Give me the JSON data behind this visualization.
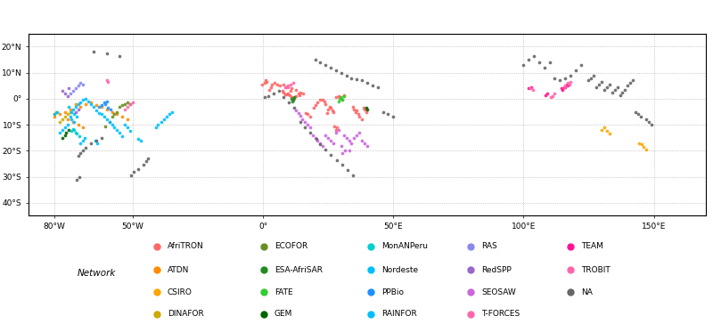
{
  "networks_colors": {
    "AfriTRON": "#FF6666",
    "ATDN": "#FF8C00",
    "CSIRO": "#FFA500",
    "DINAFOR": "#CCAA00",
    "ECOFOR": "#6B8E23",
    "ESA-AfriSAR": "#228B22",
    "FATE": "#32CD32",
    "GEM": "#006400",
    "MonANPeru": "#00CED1",
    "Nordeste": "#00BFFF",
    "PPBio": "#1E90FF",
    "RAINFOR": "#00BFFF",
    "RAS": "#8888EE",
    "RedSPP": "#9966CC",
    "SEOSAW": "#CC66DD",
    "T-FORCES": "#FF66AA",
    "TEAM": "#FF1493",
    "TROBIT": "#FF66AA",
    "NA": "#666666"
  },
  "legend_rows": [
    [
      [
        "AfriTRON",
        "#FF6666"
      ],
      [
        "ECOFOR",
        "#6B8E23"
      ],
      [
        "MonANPeru",
        "#00CED1"
      ],
      [
        "RAS",
        "#8888EE"
      ],
      [
        "TEAM",
        "#FF1493"
      ]
    ],
    [
      [
        "ATDN",
        "#FF8C00"
      ],
      [
        "ESA-AfriSAR",
        "#228B22"
      ],
      [
        "Nordeste",
        "#00BFFF"
      ],
      [
        "RedSPP",
        "#9966CC"
      ],
      [
        "TROBIT",
        "#FF66AA"
      ]
    ],
    [
      [
        "CSIRO",
        "#FFA500"
      ],
      [
        "FATE",
        "#32CD32"
      ],
      [
        "PPBio",
        "#1E90FF"
      ],
      [
        "SEOSAW",
        "#CC66DD"
      ],
      [
        "NA",
        "#666666"
      ]
    ],
    [
      [
        "DINAFOR",
        "#CCAA00"
      ],
      [
        "GEM",
        "#006400"
      ],
      [
        "RAINFOR",
        "#00BFFF"
      ],
      [
        "T-FORCES",
        "#FF66AA"
      ],
      null
    ]
  ],
  "map_lon_min": -90,
  "map_lon_max": 170,
  "map_lat_min": -45,
  "map_lat_max": 25,
  "grid_lons": [
    -80,
    -50,
    0,
    50,
    100,
    150
  ],
  "grid_lats": [
    -40,
    -30,
    -20,
    -10,
    0,
    10,
    20
  ],
  "figsize": [
    8.0,
    3.64
  ],
  "dpi": 100
}
